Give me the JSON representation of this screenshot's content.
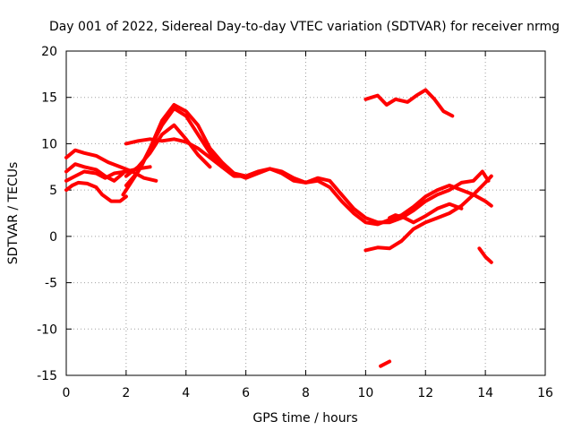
{
  "chart_data": {
    "type": "line",
    "title": "Day 001 of 2022, Sidereal Day-to-day VTEC variation (SDTVAR) for receiver nrmg",
    "xlabel": "GPS time / hours",
    "ylabel": "SDTVAR / TECUs",
    "xlim": [
      0,
      16
    ],
    "ylim": [
      -15,
      20
    ],
    "xticks": [
      0,
      2,
      4,
      6,
      8,
      10,
      12,
      14,
      16
    ],
    "yticks": [
      20,
      15,
      10,
      5,
      0,
      -5,
      -10,
      -15
    ],
    "grid": true,
    "legend": "none",
    "color": "#ff0000",
    "series": [
      {
        "name": "track-1",
        "x": [
          0.0,
          0.3,
          0.6,
          1.0,
          1.3,
          1.6,
          1.9
        ],
        "y": [
          7.0,
          7.8,
          7.5,
          7.2,
          6.5,
          6.0,
          6.8
        ]
      },
      {
        "name": "track-2",
        "x": [
          0.0,
          0.2,
          0.4,
          0.7,
          1.0,
          1.2,
          1.5,
          1.8,
          2.0
        ],
        "y": [
          5.0,
          5.5,
          5.8,
          5.7,
          5.3,
          4.5,
          3.8,
          3.8,
          4.3
        ]
      },
      {
        "name": "track-3",
        "x": [
          0.0,
          0.3,
          0.6,
          1.0,
          1.4,
          1.8,
          2.2,
          2.6,
          3.0
        ],
        "y": [
          8.5,
          9.3,
          9.0,
          8.7,
          8.0,
          7.5,
          7.0,
          6.3,
          6.0
        ]
      },
      {
        "name": "track-4",
        "x": [
          0.0,
          0.3,
          0.6,
          1.0,
          1.3,
          1.6,
          2.0,
          2.4,
          2.8
        ],
        "y": [
          6.0,
          6.5,
          7.0,
          6.8,
          6.3,
          6.8,
          7.0,
          7.3,
          7.5
        ]
      },
      {
        "name": "track-5",
        "x": [
          1.9,
          2.2,
          2.5,
          2.8,
          3.2,
          3.6,
          4.0,
          4.4,
          4.8,
          5.2,
          5.6,
          6.0,
          6.4,
          6.8,
          7.2,
          7.6,
          8.0,
          8.4,
          8.8,
          9.2,
          9.6,
          10.0,
          10.4,
          10.8,
          11.2,
          11.6,
          12.0,
          12.4,
          12.8,
          13.2,
          13.6,
          14.0,
          14.2
        ],
        "y": [
          4.5,
          6.0,
          7.5,
          9.5,
          12.0,
          13.8,
          13.0,
          11.0,
          9.0,
          7.5,
          6.5,
          6.5,
          7.0,
          7.3,
          6.8,
          6.0,
          5.8,
          6.0,
          5.3,
          3.8,
          2.5,
          1.5,
          1.3,
          1.8,
          2.3,
          3.2,
          4.3,
          5.0,
          5.5,
          5.0,
          4.5,
          3.8,
          3.3
        ]
      },
      {
        "name": "track-6",
        "x": [
          2.0,
          2.4,
          2.8,
          3.2,
          3.6,
          4.0,
          4.4,
          4.8,
          5.2,
          5.6,
          6.0,
          6.4,
          6.8,
          7.2,
          7.6,
          8.0,
          8.4,
          8.8,
          9.2,
          9.6,
          10.0,
          10.4,
          10.8,
          11.2,
          11.6,
          12.0,
          12.4,
          12.8,
          13.2,
          13.6,
          13.9,
          14.1
        ],
        "y": [
          5.5,
          7.0,
          9.5,
          12.5,
          14.2,
          13.5,
          12.0,
          9.5,
          8.0,
          6.8,
          6.3,
          6.8,
          7.3,
          7.0,
          6.3,
          5.8,
          6.3,
          6.0,
          4.5,
          3.0,
          2.0,
          1.5,
          1.5,
          2.0,
          2.8,
          3.8,
          4.5,
          5.0,
          5.8,
          6.0,
          7.0,
          6.0
        ]
      },
      {
        "name": "track-7",
        "x": [
          2.0,
          2.4,
          2.8,
          3.2,
          3.6,
          4.0,
          4.4,
          4.8,
          5.2,
          5.6,
          6.0
        ],
        "y": [
          10.0,
          10.3,
          10.5,
          10.3,
          10.5,
          10.2,
          9.5,
          8.5,
          7.5,
          6.8,
          6.5
        ]
      },
      {
        "name": "track-8",
        "x": [
          2.0,
          2.4,
          2.8,
          3.2,
          3.6,
          4.0,
          4.4,
          4.8
        ],
        "y": [
          6.5,
          7.5,
          9.0,
          11.0,
          12.0,
          10.5,
          8.8,
          7.5
        ]
      },
      {
        "name": "track-9",
        "x": [
          10.0,
          10.4,
          10.8,
          11.2,
          11.6,
          12.0,
          12.4,
          12.8,
          13.2,
          13.6,
          14.0,
          14.2
        ],
        "y": [
          -1.5,
          -1.2,
          -1.3,
          -0.5,
          0.8,
          1.5,
          2.0,
          2.5,
          3.3,
          4.5,
          5.8,
          6.5
        ]
      },
      {
        "name": "track-10",
        "x": [
          10.8,
          11.0,
          11.3,
          11.6,
          12.0,
          12.4,
          12.8,
          13.2
        ],
        "y": [
          2.0,
          2.3,
          2.0,
          1.5,
          2.2,
          3.0,
          3.5,
          3.0
        ]
      },
      {
        "name": "track-11",
        "x": [
          10.0,
          10.4,
          10.7,
          11.0,
          11.4,
          11.7,
          12.0,
          12.3,
          12.6,
          12.9
        ],
        "y": [
          14.8,
          15.2,
          14.2,
          14.8,
          14.5,
          15.2,
          15.8,
          14.8,
          13.5,
          13.0
        ]
      },
      {
        "name": "track-12",
        "x": [
          13.8,
          14.0,
          14.2
        ],
        "y": [
          -1.3,
          -2.2,
          -2.8
        ]
      },
      {
        "name": "track-13",
        "x": [
          10.5,
          10.8
        ],
        "y": [
          -14.0,
          -13.5
        ]
      }
    ]
  }
}
